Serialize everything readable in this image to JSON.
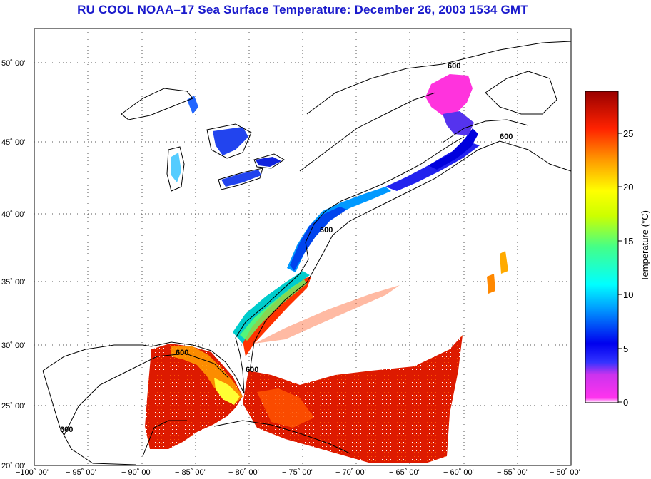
{
  "title": "RU COOL  NOAA–17  Sea Surface Temperature:  December 26, 2003 1534 GMT",
  "lat_labels": [
    "50˚ 00'",
    "45˚ 00'",
    "40˚ 00'",
    "35˚ 00'",
    "30˚ 00'",
    "25˚ 00'",
    "20˚ 00'"
  ],
  "lon_labels": [
    "−100˚ 00'",
    "− 95˚ 00'",
    "− 90˚ 00'",
    "− 85˚ 00'",
    "− 80˚ 00'",
    "− 75˚ 00'",
    "− 70˚ 00'",
    "− 65˚ 00'",
    "− 60˚ 00'",
    "− 55˚ 00'",
    "− 50˚ 00'"
  ],
  "colorbar": {
    "label": "Temperature (°C)",
    "ticks": [
      "25",
      "20",
      "15",
      "10",
      "5",
      "0"
    ],
    "range": [
      0,
      28.5
    ]
  },
  "contour_label": "600",
  "colors": {
    "title": "#1a1acc",
    "cold": "#ff33dd",
    "warm": "#dd1a00"
  }
}
